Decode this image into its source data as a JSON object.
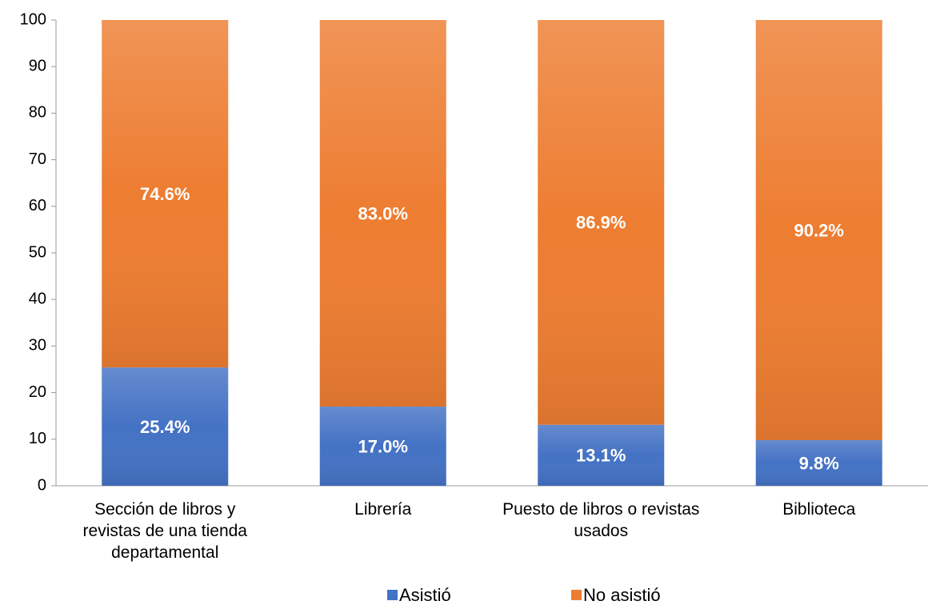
{
  "chart_data": {
    "type": "stacked_bar",
    "categories": [
      "Sección de libros y revistas de una tienda departamental",
      "Librería",
      "Puesto de libros o revistas usados",
      "Biblioteca"
    ],
    "series": [
      {
        "name": "Asistió",
        "color": "#4472c4",
        "values": [
          25.4,
          17.0,
          13.1,
          9.8
        ],
        "value_labels": [
          "25.4%",
          "17.0%",
          "13.1%",
          "9.8%"
        ]
      },
      {
        "name": "No asistió",
        "color": "#ed7d31",
        "values": [
          74.6,
          83.0,
          86.9,
          90.2
        ],
        "value_labels": [
          "74.6%",
          "83.0%",
          "86.9%",
          "90.2%"
        ]
      }
    ],
    "ylim": [
      0,
      100
    ],
    "yticks": [
      0,
      10,
      20,
      30,
      40,
      50,
      60,
      70,
      80,
      90,
      100
    ],
    "legend": "bottom"
  }
}
